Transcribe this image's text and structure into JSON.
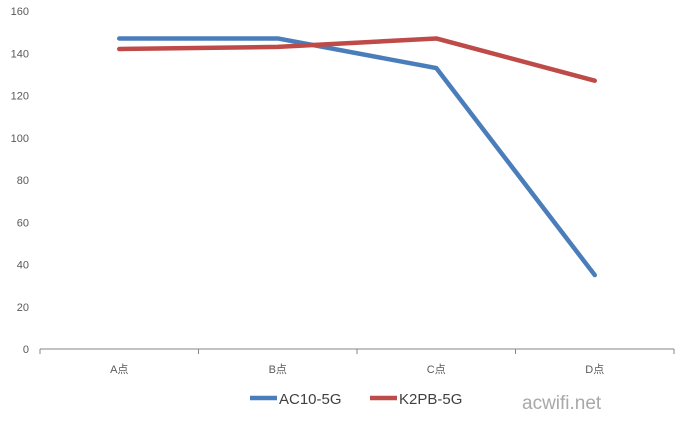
{
  "chart_data": {
    "type": "line",
    "categories": [
      "A点",
      "B点",
      "C点",
      "D点"
    ],
    "series": [
      {
        "name": "AC10-5G",
        "values": [
          147,
          147,
          133,
          35
        ],
        "color": "#4a7ebb"
      },
      {
        "name": "K2PB-5G",
        "values": [
          142,
          143,
          147,
          127
        ],
        "color": "#be4b48"
      }
    ],
    "ylim": [
      0,
      160
    ],
    "yticks": [
      "0",
      "20",
      "40",
      "60",
      "80",
      "100",
      "120",
      "140",
      "160"
    ],
    "grid": false,
    "legend_position": "bottom"
  },
  "watermark": "acwifi.net"
}
